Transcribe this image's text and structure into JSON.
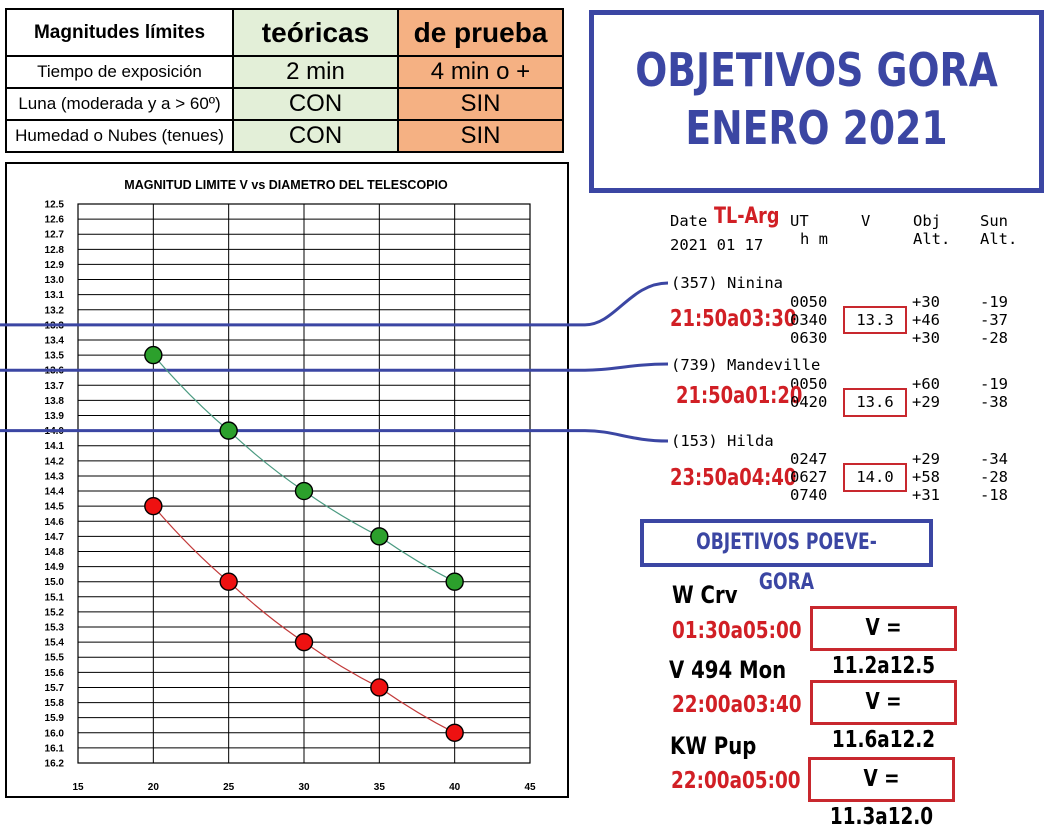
{
  "limits_table": {
    "header": {
      "label": "Magnitudes límites",
      "theoretical": "teóricas",
      "test": "de prueba"
    },
    "rows": [
      {
        "label": "Tiempo de exposición",
        "theoretical": "2 min",
        "test": "4 min o +"
      },
      {
        "label": "Luna (moderada y a > 60º)",
        "theoretical": "CON",
        "test": "SIN"
      },
      {
        "label": "Humedad o Nubes (tenues)",
        "theoretical": "CON",
        "test": "SIN"
      }
    ],
    "colors": {
      "theoretical": "#e3efd8",
      "test": "#f5b183"
    }
  },
  "chart_data": {
    "type": "scatter",
    "title": "MAGNITUD LIMITE V vs DIAMETRO DEL TELESCOPIO",
    "xlabel": "",
    "ylabel": "",
    "xlim": [
      15,
      45
    ],
    "ylim": [
      12.5,
      16.2
    ],
    "y_inverted": true,
    "x_ticks": [
      15,
      20,
      25,
      30,
      35,
      40,
      45
    ],
    "y_ticks": [
      "12.5",
      "12.6",
      "12.7",
      "12.8",
      "12.9",
      "13.0",
      "13.1",
      "13.2",
      "13.3",
      "13.4",
      "13.5",
      "13.6",
      "13.7",
      "13.8",
      "13.9",
      "14.0",
      "14.1",
      "14.2",
      "14.3",
      "14.4",
      "14.5",
      "14.6",
      "14.7",
      "14.8",
      "14.9",
      "15.0",
      "15.1",
      "15.2",
      "15.3",
      "15.4",
      "15.5",
      "15.6",
      "15.7",
      "15.8",
      "15.9",
      "16.0",
      "16.1",
      "16.2"
    ],
    "grid": true,
    "series": [
      {
        "color": "#2ca02c",
        "line_color": "#4a9a80",
        "points": [
          [
            20,
            13.5
          ],
          [
            25,
            14.0
          ],
          [
            30,
            14.4
          ],
          [
            35,
            14.7
          ],
          [
            40,
            15.0
          ]
        ]
      },
      {
        "color": "#ee1111",
        "line_color": "#c23a3a",
        "points": [
          [
            20,
            14.5
          ],
          [
            25,
            15.0
          ],
          [
            30,
            15.4
          ],
          [
            35,
            15.7
          ],
          [
            40,
            16.0
          ]
        ]
      }
    ],
    "reference_lines": [
      13.3,
      13.6,
      14.0
    ]
  },
  "title": {
    "line1": "OBJETIVOS GORA",
    "line2": "ENERO 2021",
    "color": "#3b46a3"
  },
  "ephemeris": {
    "header": {
      "date_label": "Date",
      "date_value": "2021 01 17",
      "tl": "TL-Arg",
      "ut": "UT",
      "hm": "h m",
      "v": "V",
      "obj": "Obj",
      "obj_alt": "Alt.",
      "sun": "Sun",
      "sun_alt": "Alt."
    },
    "objects": [
      {
        "name": "(357) Ninina",
        "window": "21:50a03:30",
        "v": "13.3",
        "rows": [
          {
            "ut": "0050",
            "obj_alt": "+30",
            "sun_alt": "-19"
          },
          {
            "ut": "0340",
            "obj_alt": "+46",
            "sun_alt": "-37"
          },
          {
            "ut": "0630",
            "obj_alt": "+30",
            "sun_alt": "-28"
          }
        ]
      },
      {
        "name": "(739) Mandeville",
        "window": "21:50a01:20",
        "v": "13.6",
        "rows": [
          {
            "ut": "0050",
            "obj_alt": "+60",
            "sun_alt": "-19"
          },
          {
            "ut": "0420",
            "obj_alt": "+29",
            "sun_alt": "-38"
          }
        ]
      },
      {
        "name": "(153) Hilda",
        "window": "23:50a04:40",
        "v": "14.0",
        "rows": [
          {
            "ut": "0247",
            "obj_alt": "+29",
            "sun_alt": "-34"
          },
          {
            "ut": "0627",
            "obj_alt": "+58",
            "sun_alt": "-28"
          },
          {
            "ut": "0740",
            "obj_alt": "+31",
            "sun_alt": "-18"
          }
        ]
      }
    ]
  },
  "poeve": {
    "title": "OBJETIVOS POEVE-GORA",
    "stars": [
      {
        "name": "W Crv",
        "window": "01:30a05:00",
        "range": "V = 11.2a12.5"
      },
      {
        "name": "V 494 Mon",
        "window": "22:00a03:40",
        "range": "V = 11.6a12.2"
      },
      {
        "name": "KW Pup",
        "window": "22:00a05:00",
        "range": "V = 11.3a12.0"
      }
    ]
  }
}
